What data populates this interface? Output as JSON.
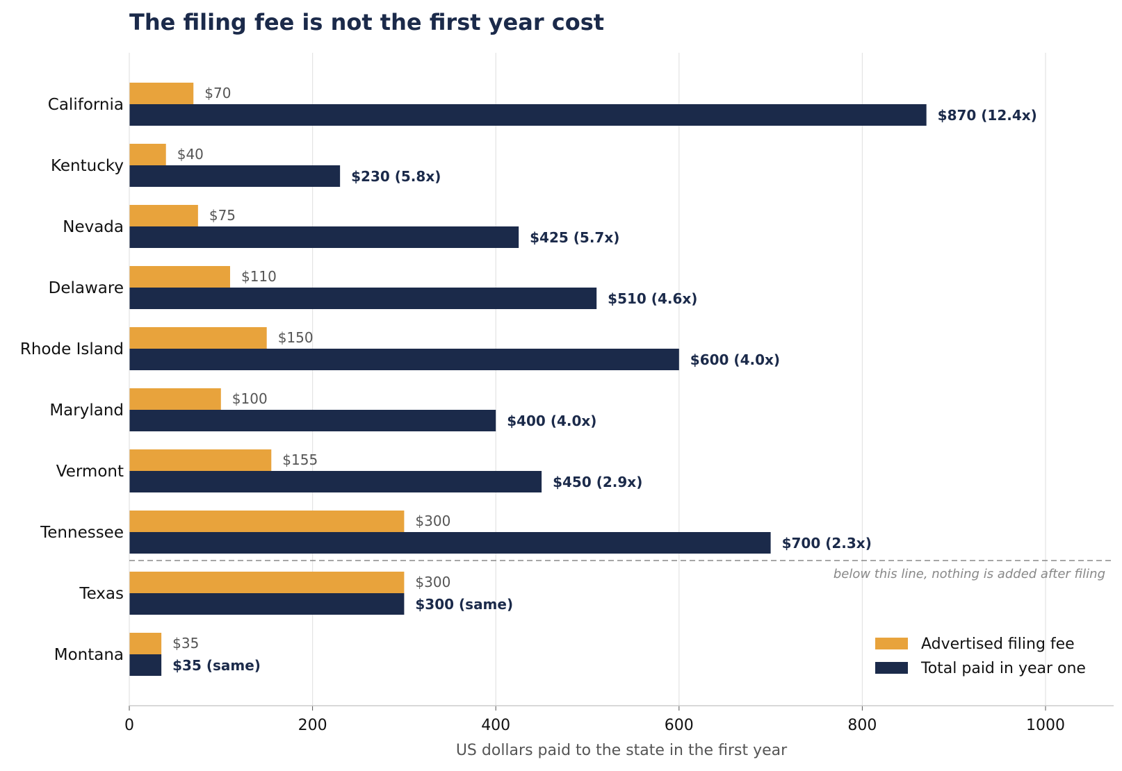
{
  "chart_data": {
    "type": "bar",
    "orientation": "horizontal",
    "title": "The filing fee is not the first year cost",
    "xlabel": "US dollars paid to the state in the first year",
    "ylabel": "",
    "xlim": [
      0,
      1080
    ],
    "xticks": [
      0,
      200,
      400,
      600,
      800,
      1000
    ],
    "grid": "vertical",
    "legend_position": "bottom-right",
    "categories": [
      "California",
      "Kentucky",
      "Nevada",
      "Delaware",
      "Rhode Island",
      "Maryland",
      "Vermont",
      "Tennessee",
      "Texas",
      "Montana"
    ],
    "series": [
      {
        "name": "Advertised filing fee",
        "color": "#e8a33c",
        "values": [
          70,
          40,
          75,
          110,
          150,
          100,
          155,
          300,
          300,
          35
        ],
        "labels": [
          "$70",
          "$40",
          "$75",
          "$110",
          "$150",
          "$100",
          "$155",
          "$300",
          "$300",
          "$35"
        ]
      },
      {
        "name": "Total paid in year one",
        "color": "#1b2a4a",
        "values": [
          870,
          230,
          425,
          510,
          600,
          400,
          450,
          700,
          300,
          35
        ],
        "labels": [
          "$870  (12.4x)",
          "$230  (5.8x)",
          "$425  (5.7x)",
          "$510  (4.6x)",
          "$600  (4.0x)",
          "$400  (4.0x)",
          "$450  (2.9x)",
          "$700  (2.3x)",
          "$300  (same)",
          "$35  (same)"
        ]
      }
    ],
    "divider": {
      "after_category": "Tennessee",
      "note": "below this line, nothing is added after filing"
    }
  }
}
